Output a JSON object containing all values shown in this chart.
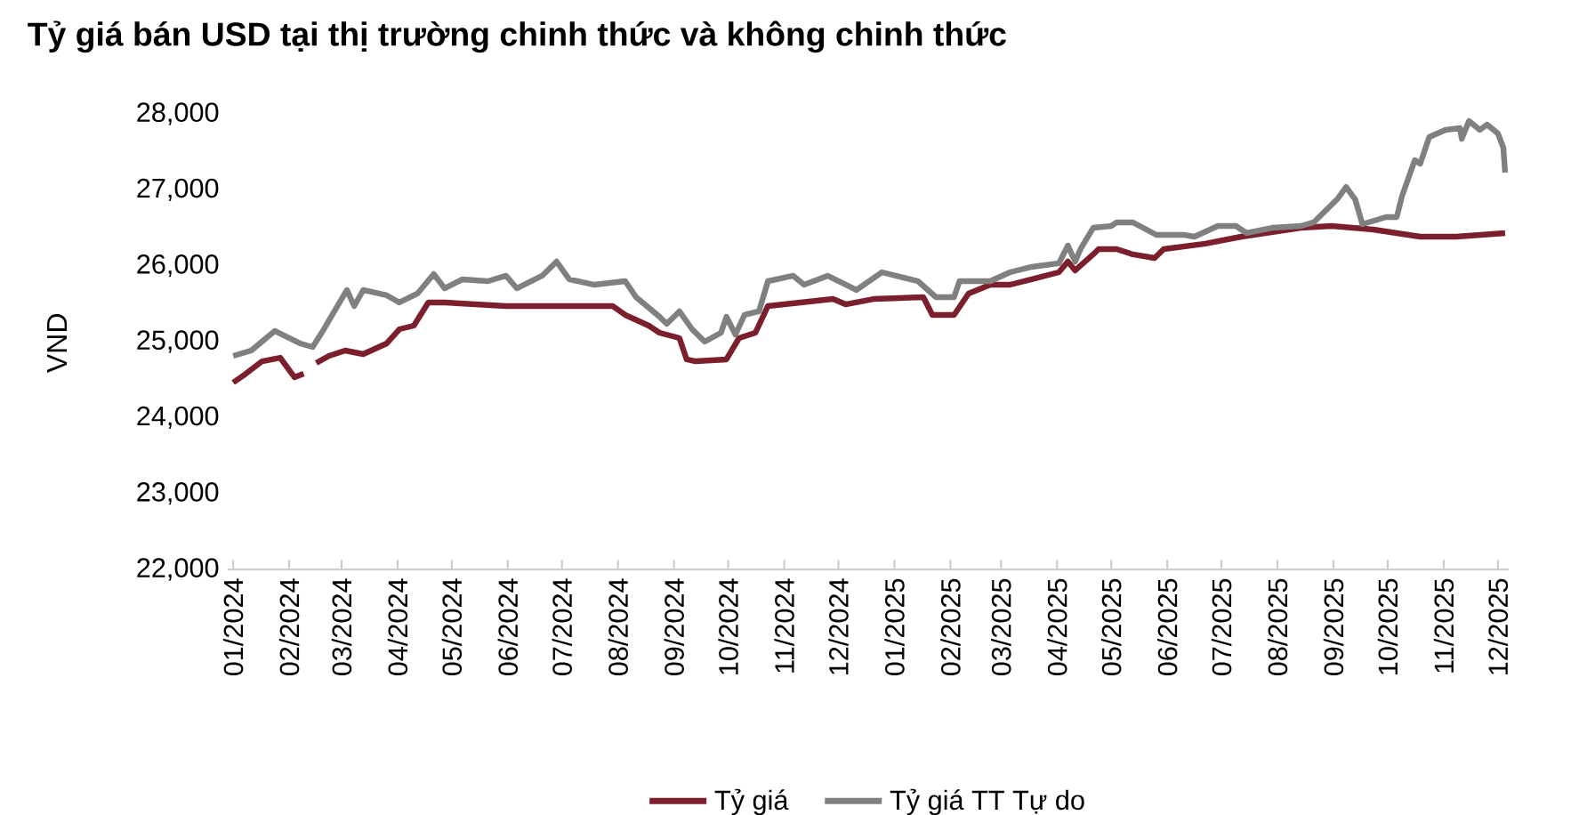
{
  "chart_data": {
    "type": "line",
    "title": "Tỷ giá bán USD tại thị trường chinh thức và không chinh thức",
    "ylabel": "VND",
    "xlim": [
      "2023-12-29",
      "2025-12-07"
    ],
    "ylim": [
      22000,
      28000
    ],
    "yticks": [
      {
        "value": 22000,
        "label": "22,000"
      },
      {
        "value": 23000,
        "label": "23,000"
      },
      {
        "value": 24000,
        "label": "24,000"
      },
      {
        "value": 25000,
        "label": "25,000"
      },
      {
        "value": 26000,
        "label": "26,000"
      },
      {
        "value": 27000,
        "label": "27,000"
      },
      {
        "value": 28000,
        "label": "28,000"
      }
    ],
    "xticks": [
      {
        "value": "2024-01-01",
        "label": "01/2024"
      },
      {
        "value": "2024-02-01",
        "label": "02/2024"
      },
      {
        "value": "2024-03-01",
        "label": "03/2024"
      },
      {
        "value": "2024-04-01",
        "label": "04/2024"
      },
      {
        "value": "2024-05-01",
        "label": "05/2024"
      },
      {
        "value": "2024-06-01",
        "label": "06/2024"
      },
      {
        "value": "2024-07-01",
        "label": "07/2024"
      },
      {
        "value": "2024-08-01",
        "label": "08/2024"
      },
      {
        "value": "2024-09-01",
        "label": "09/2024"
      },
      {
        "value": "2024-10-01",
        "label": "10/2024"
      },
      {
        "value": "2024-11-01",
        "label": "11/2024"
      },
      {
        "value": "2024-12-01",
        "label": "12/2024"
      },
      {
        "value": "2025-01-01",
        "label": "01/2025"
      },
      {
        "value": "2025-02-01",
        "label": "02/2025"
      },
      {
        "value": "2025-03-01",
        "label": "03/2025"
      },
      {
        "value": "2025-04-01",
        "label": "04/2025"
      },
      {
        "value": "2025-05-01",
        "label": "05/2025"
      },
      {
        "value": "2025-06-01",
        "label": "06/2025"
      },
      {
        "value": "2025-07-01",
        "label": "07/2025"
      },
      {
        "value": "2025-08-01",
        "label": "08/2025"
      },
      {
        "value": "2025-09-01",
        "label": "09/2025"
      },
      {
        "value": "2025-10-01",
        "label": "10/2025"
      },
      {
        "value": "2025-11-01",
        "label": "11/2025"
      },
      {
        "value": "2025-12-01",
        "label": "12/2025"
      }
    ],
    "legend": "bottom",
    "series": [
      {
        "name": "Tỷ giá",
        "color": "#7b1f2c",
        "x": [
          "2024-01-01",
          "2024-01-08",
          "2024-01-17",
          "2024-01-27",
          "2024-02-04",
          "2024-02-09",
          "2024-02-14",
          "2024-02-16",
          "2024-02-23",
          "2024-03-03",
          "2024-03-13",
          "2024-03-26",
          "2024-04-02",
          "2024-04-10",
          "2024-04-18",
          "2024-04-27",
          "2024-05-31",
          "2024-07-03",
          "2024-07-29",
          "2024-08-05",
          "2024-08-18",
          "2024-08-24",
          "2024-09-04",
          "2024-09-08",
          "2024-09-13",
          "2024-09-30",
          "2024-10-07",
          "2024-10-16",
          "2024-10-23",
          "2024-11-28",
          "2024-12-05",
          "2024-12-21",
          "2025-01-17",
          "2025-01-22",
          "2025-02-03",
          "2025-02-11",
          "2025-02-23",
          "2025-03-06",
          "2025-03-18",
          "2025-04-02",
          "2025-04-07",
          "2025-04-11",
          "2025-04-21",
          "2025-04-24",
          "2025-05-04",
          "2025-05-13",
          "2025-05-25",
          "2025-05-30",
          "2025-06-22",
          "2025-07-12",
          "2025-08-14",
          "2025-08-31",
          "2025-09-23",
          "2025-10-19",
          "2025-11-08",
          "2025-12-05"
        ],
        "values": [
          24461,
          24578,
          24742,
          24789,
          24531,
          24578,
          null,
          24719,
          24813,
          24883,
          24836,
          24977,
          25164,
          25211,
          25516,
          25516,
          25469,
          25469,
          25469,
          25352,
          25211,
          25117,
          25047,
          24766,
          24742,
          24766,
          25047,
          25117,
          25469,
          25563,
          25492,
          25563,
          25586,
          25352,
          25352,
          25633,
          25750,
          25750,
          25821,
          25914,
          26055,
          25938,
          26149,
          26219,
          26219,
          26149,
          26102,
          26219,
          26290,
          26383,
          26500,
          26524,
          26477,
          26383,
          26383,
          26430
        ]
      },
      {
        "name": "Tỷ giá TT Tự do",
        "color": "#808080",
        "x": [
          "2024-01-01",
          "2024-01-11",
          "2024-01-24",
          "2024-02-07",
          "2024-02-14",
          "2024-02-19",
          "2024-02-26",
          "2024-03-04",
          "2024-03-08",
          "2024-03-13",
          "2024-03-26",
          "2024-04-02",
          "2024-04-12",
          "2024-04-21",
          "2024-04-27",
          "2024-05-07",
          "2024-05-21",
          "2024-05-31",
          "2024-06-06",
          "2024-06-20",
          "2024-06-28",
          "2024-07-05",
          "2024-07-19",
          "2024-08-05",
          "2024-08-11",
          "2024-08-24",
          "2024-08-28",
          "2024-09-04",
          "2024-09-11",
          "2024-09-18",
          "2024-09-27",
          "2024-09-30",
          "2024-10-05",
          "2024-10-10",
          "2024-10-18",
          "2024-10-23",
          "2024-11-06",
          "2024-11-12",
          "2024-11-25",
          "2024-12-11",
          "2024-12-25",
          "2025-01-14",
          "2025-01-24",
          "2025-02-03",
          "2025-02-06",
          "2025-02-23",
          "2025-03-06",
          "2025-03-18",
          "2025-04-02",
          "2025-04-07",
          "2025-04-11",
          "2025-04-14",
          "2025-04-21",
          "2025-05-01",
          "2025-05-04",
          "2025-05-13",
          "2025-05-26",
          "2025-06-10",
          "2025-06-16",
          "2025-06-29",
          "2025-07-09",
          "2025-07-15",
          "2025-07-29",
          "2025-08-14",
          "2025-08-21",
          "2025-08-28",
          "2025-09-03",
          "2025-09-08",
          "2025-09-13",
          "2025-09-17",
          "2025-09-30",
          "2025-10-06",
          "2025-10-09",
          "2025-10-16",
          "2025-10-19",
          "2025-10-24",
          "2025-11-02",
          "2025-11-10",
          "2025-11-11",
          "2025-11-15",
          "2025-11-21",
          "2025-11-25",
          "2025-12-01",
          "2025-12-04",
          "2025-12-05"
        ],
        "values": [
          24812,
          24883,
          25141,
          24977,
          24930,
          25117,
          25399,
          25680,
          25469,
          25680,
          25610,
          25516,
          25633,
          25891,
          25703,
          25821,
          25797,
          25868,
          25703,
          25868,
          26055,
          25821,
          25750,
          25797,
          25586,
          25328,
          25234,
          25399,
          25164,
          25000,
          25117,
          25328,
          25094,
          25352,
          25399,
          25797,
          25868,
          25750,
          25868,
          25680,
          25914,
          25797,
          25586,
          25586,
          25797,
          25797,
          25914,
          25985,
          26032,
          26266,
          26055,
          26219,
          26500,
          26524,
          26571,
          26571,
          26407,
          26407,
          26383,
          26524,
          26524,
          26430,
          26500,
          26524,
          26571,
          26735,
          26875,
          27039,
          26875,
          26547,
          26641,
          26641,
          26922,
          27391,
          27344,
          27695,
          27789,
          27813,
          27672,
          27906,
          27789,
          27860,
          27743,
          27555,
          27227
        ]
      }
    ]
  }
}
